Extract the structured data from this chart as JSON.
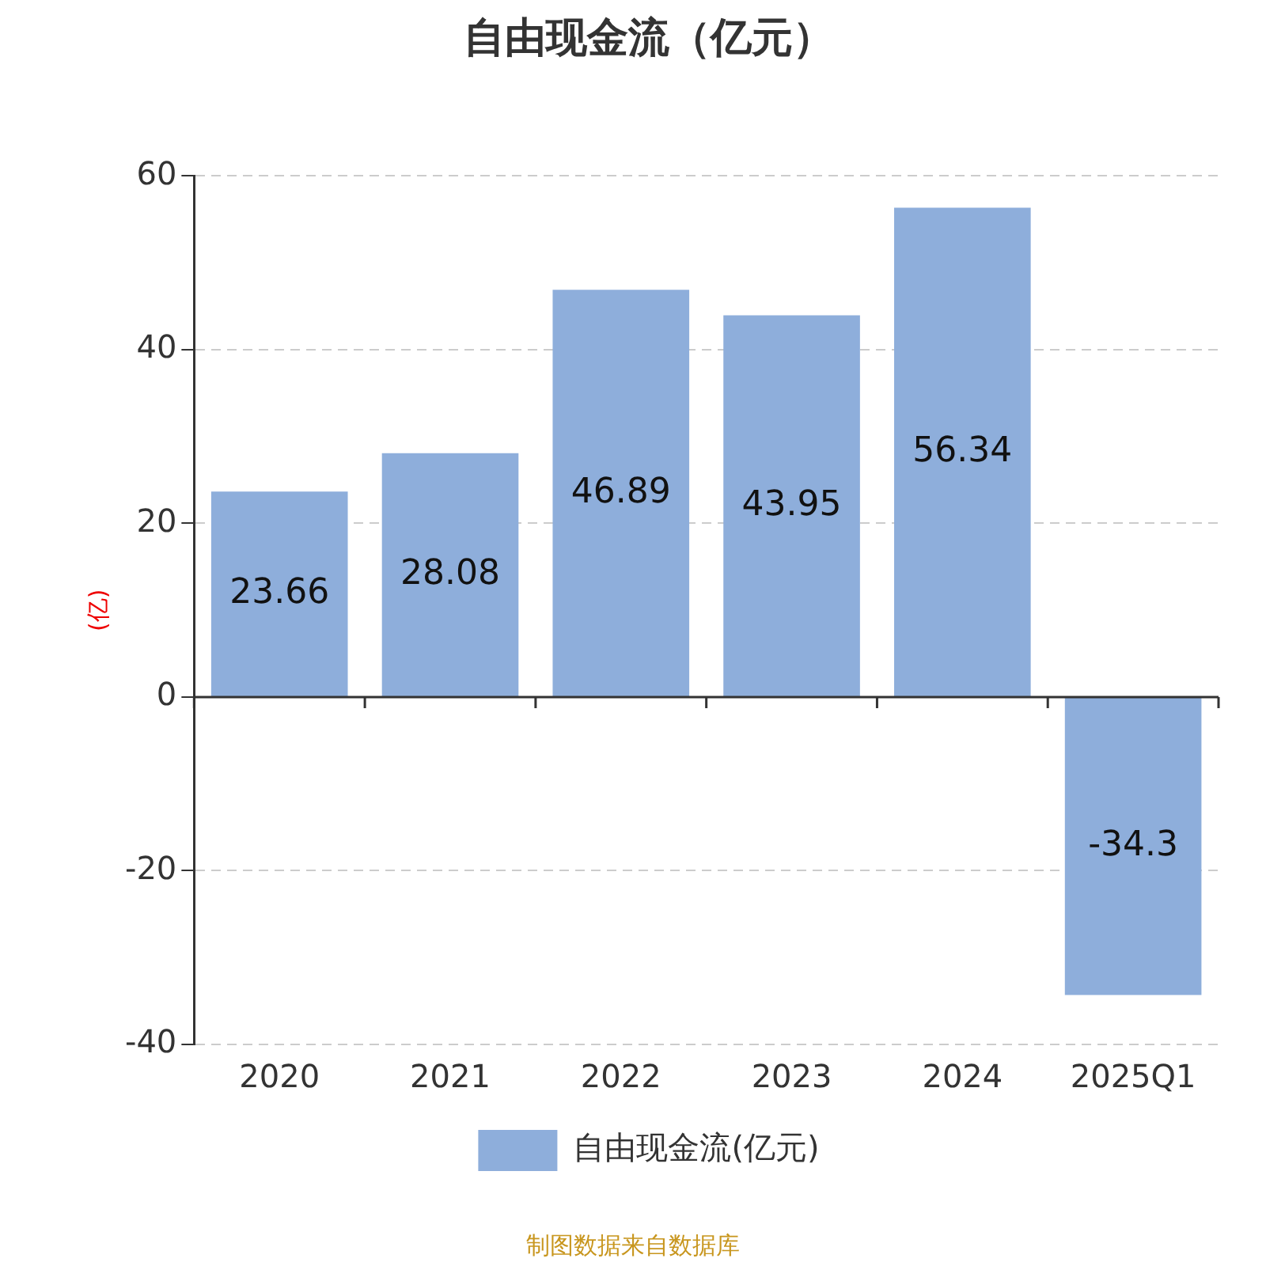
{
  "chart_data": {
    "type": "bar",
    "title": "自由现金流（亿元）",
    "ylabel": "(亿)",
    "categories": [
      "2020",
      "2021",
      "2022",
      "2023",
      "2024",
      "2025Q1"
    ],
    "series": [
      {
        "name": "自由现金流(亿元)",
        "color": "#8eaedb",
        "values": [
          23.66,
          28.08,
          46.89,
          43.95,
          56.34,
          -34.3
        ]
      }
    ],
    "ylim": [
      -40,
      60
    ],
    "yticks": [
      -40,
      -20,
      0,
      20,
      40,
      60
    ],
    "grid": "y",
    "legend": "bottom",
    "data_labels": true,
    "annotations": [
      "制图数据来自数据库"
    ]
  }
}
